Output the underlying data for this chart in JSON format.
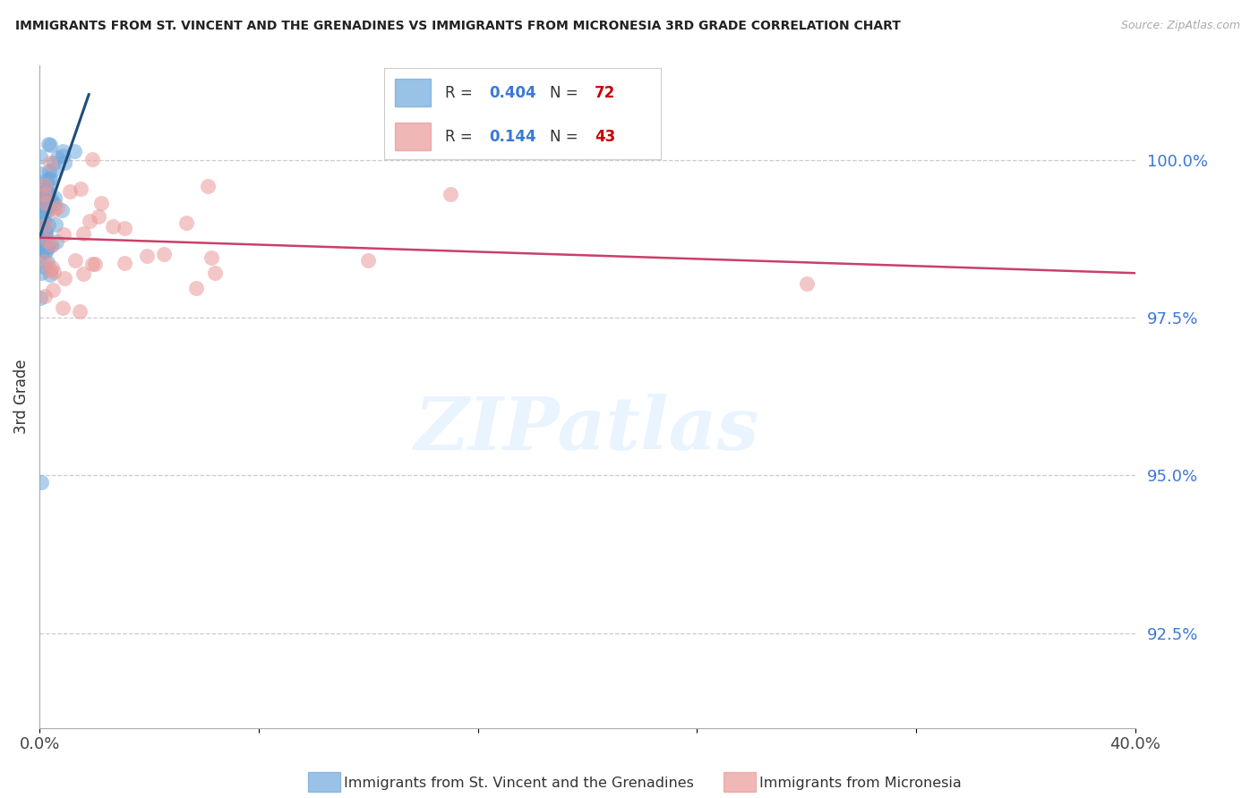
{
  "title": "IMMIGRANTS FROM ST. VINCENT AND THE GRENADINES VS IMMIGRANTS FROM MICRONESIA 3RD GRADE CORRELATION CHART",
  "source": "Source: ZipAtlas.com",
  "ylabel": "3rd Grade",
  "y_ticks": [
    92.5,
    95.0,
    97.5,
    100.0
  ],
  "y_tick_labels": [
    "92.5%",
    "95.0%",
    "97.5%",
    "100.0%"
  ],
  "xlim": [
    0.0,
    40.0
  ],
  "ylim": [
    91.0,
    101.5
  ],
  "series1_label": "Immigrants from St. Vincent and the Grenadines",
  "series1_color": "#6fa8dc",
  "series1_R": 0.404,
  "series1_N": 72,
  "series2_label": "Immigrants from Micronesia",
  "series2_color": "#ea9999",
  "series2_R": 0.144,
  "series2_N": 43,
  "trend1_color": "#1f4e79",
  "trend2_color": "#c9406a",
  "background_color": "#ffffff",
  "grid_color": "#cccccc",
  "legend_R_color": "#3c78d8",
  "legend_N_color": "#cc0000",
  "tick_label_color": "#3c78d8",
  "axis_color": "#aaaaaa"
}
